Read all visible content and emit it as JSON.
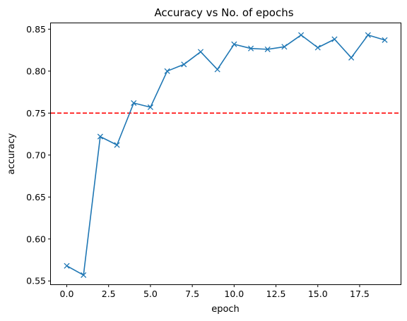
{
  "chart_data": {
    "type": "line",
    "title": "Accuracy vs No. of epochs",
    "xlabel": "epoch",
    "ylabel": "accuracy",
    "xlim": [
      -0.95,
      19.95
    ],
    "ylim": [
      0.546,
      0.857
    ],
    "x_ticks": [
      0.0,
      2.5,
      5.0,
      7.5,
      10.0,
      12.5,
      15.0,
      17.5
    ],
    "x_tick_labels": [
      "0.0",
      "2.5",
      "5.0",
      "7.5",
      "10.0",
      "12.5",
      "15.0",
      "17.5"
    ],
    "y_ticks": [
      0.55,
      0.6,
      0.65,
      0.7,
      0.75,
      0.8,
      0.85
    ],
    "y_tick_labels": [
      "0.55",
      "0.60",
      "0.65",
      "0.70",
      "0.75",
      "0.80",
      "0.85"
    ],
    "grid": false,
    "series": [
      {
        "color": "#1f77b4",
        "marker": "x",
        "x": [
          0,
          1,
          2,
          3,
          4,
          5,
          6,
          7,
          8,
          9,
          10,
          11,
          12,
          13,
          14,
          15,
          16,
          17,
          18,
          19
        ],
        "values": [
          0.568,
          0.557,
          0.722,
          0.712,
          0.762,
          0.757,
          0.8,
          0.808,
          0.823,
          0.802,
          0.832,
          0.827,
          0.826,
          0.829,
          0.843,
          0.828,
          0.838,
          0.816,
          0.843,
          0.837
        ]
      }
    ],
    "reference_line": {
      "y": 0.75,
      "color": "#ff0000",
      "style": "dashed"
    }
  }
}
